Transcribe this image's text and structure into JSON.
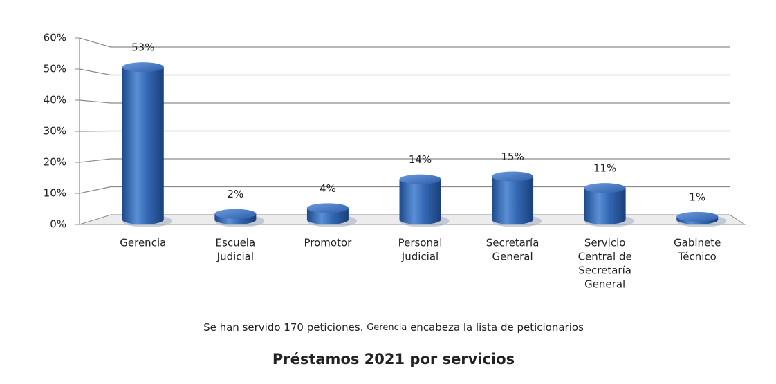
{
  "chart_data": {
    "type": "bar",
    "title": "Préstamos 2021 por servicios",
    "caption": [
      "Se han servido 170 peticiones.",
      "Gerencia",
      "encabeza la lista de peticionarios"
    ],
    "categories": [
      [
        "Gerencia"
      ],
      [
        "Escuela",
        "Judicial"
      ],
      [
        "Promotor"
      ],
      [
        "Personal",
        "Judicial"
      ],
      [
        "Secretaría",
        "General"
      ],
      [
        "Servicio",
        "Central de",
        "Secretaría",
        "General"
      ],
      [
        "Gabinete",
        "Técnico"
      ]
    ],
    "values": [
      53,
      2,
      4,
      14,
      15,
      11,
      1
    ],
    "value_labels": [
      "53%",
      "2%",
      "4%",
      "14%",
      "15%",
      "11%",
      "1%"
    ],
    "color": "#2e64b0",
    "ylim": [
      0,
      60
    ],
    "yticks": [
      {
        "value": 0,
        "label": "0%"
      },
      {
        "value": 10,
        "label": "10%"
      },
      {
        "value": 20,
        "label": "20%"
      },
      {
        "value": 30,
        "label": "30%"
      },
      {
        "value": 40,
        "label": "40%"
      },
      {
        "value": 50,
        "label": "50%"
      },
      {
        "value": 60,
        "label": "60%"
      }
    ],
    "grid": true
  }
}
